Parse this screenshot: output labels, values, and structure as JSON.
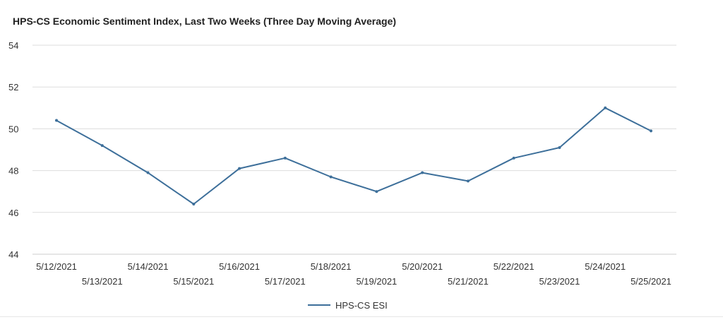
{
  "chart_data": {
    "type": "line",
    "title": "HPS-CS Economic Sentiment Index, Last Two Weeks (Three Day Moving Average)",
    "xlabel": "",
    "ylabel": "",
    "x": [
      "5/12/2021",
      "5/13/2021",
      "5/14/2021",
      "5/15/2021",
      "5/16/2021",
      "5/17/2021",
      "5/18/2021",
      "5/19/2021",
      "5/20/2021",
      "5/21/2021",
      "5/22/2021",
      "5/23/2021",
      "5/24/2021",
      "5/25/2021"
    ],
    "series": [
      {
        "name": "HPS-CS ESI",
        "color": "#3d6f9a",
        "values": [
          50.4,
          49.2,
          47.9,
          46.4,
          48.1,
          48.6,
          47.7,
          47.0,
          47.9,
          47.5,
          48.6,
          49.1,
          51.0,
          49.9
        ]
      }
    ],
    "yticks": [
      44,
      46,
      48,
      50,
      52,
      54
    ],
    "ylim": [
      44,
      54
    ],
    "grid": true,
    "legend": "bottom-center"
  }
}
